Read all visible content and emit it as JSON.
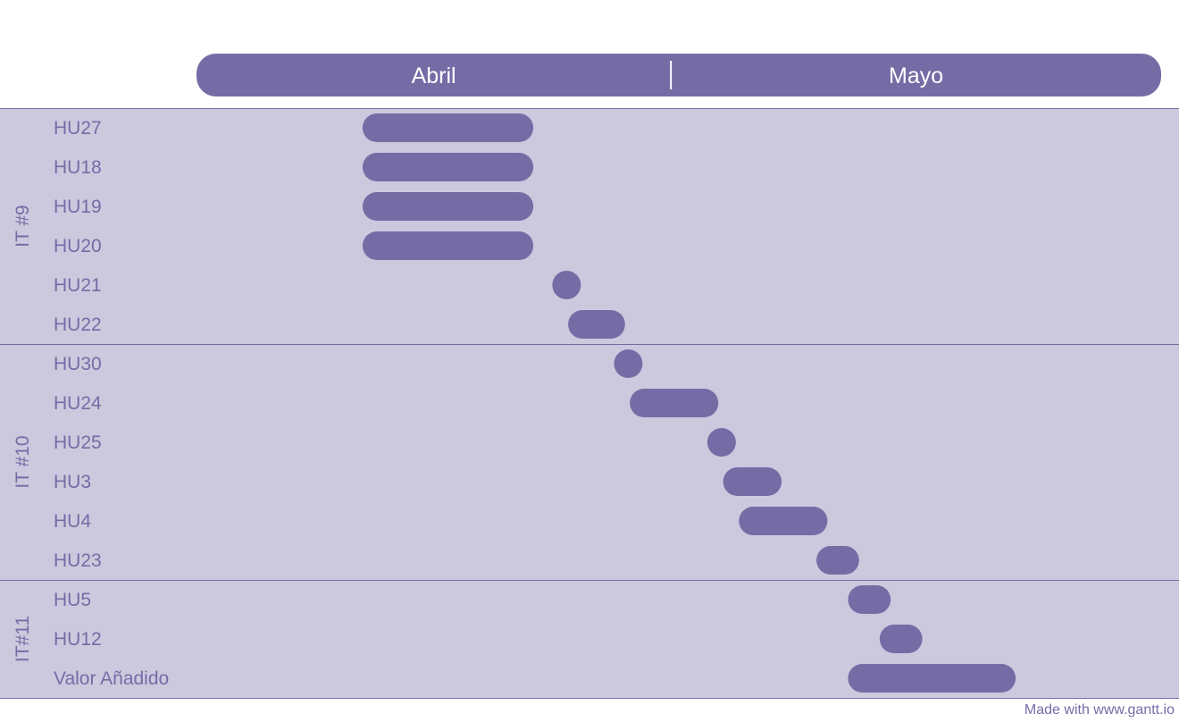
{
  "colors": {
    "accent": "#756ca6",
    "group_background": "#ccc9de",
    "page_background": "#ffffff",
    "month_text": "#ffffff"
  },
  "chart_data": {
    "type": "gantt",
    "title": "",
    "x_axis": {
      "type": "date",
      "months": [
        "Abril",
        "Mayo"
      ],
      "range_days": [
        0,
        61
      ],
      "month_boundary_day": 30
    },
    "groups": [
      {
        "label": "IT #9",
        "tasks": [
          {
            "name": "HU27",
            "start": 10.5,
            "end": 21.3
          },
          {
            "name": "HU18",
            "start": 10.5,
            "end": 21.3
          },
          {
            "name": "HU19",
            "start": 10.5,
            "end": 21.3
          },
          {
            "name": "HU20",
            "start": 10.5,
            "end": 21.3
          },
          {
            "name": "HU21",
            "start": 22.5,
            "end": 24.2
          },
          {
            "name": "HU22",
            "start": 23.5,
            "end": 27.1
          }
        ]
      },
      {
        "label": "IT #10",
        "tasks": [
          {
            "name": "HU30",
            "start": 26.4,
            "end": 28.1
          },
          {
            "name": "HU24",
            "start": 27.4,
            "end": 33.0
          },
          {
            "name": "HU25",
            "start": 32.3,
            "end": 34.0
          },
          {
            "name": "HU3",
            "start": 33.3,
            "end": 37.0
          },
          {
            "name": "HU4",
            "start": 34.3,
            "end": 39.9
          },
          {
            "name": "HU23",
            "start": 39.2,
            "end": 41.9
          }
        ]
      },
      {
        "label": "IT#11",
        "tasks": [
          {
            "name": "HU5",
            "start": 41.2,
            "end": 43.9
          },
          {
            "name": "HU12",
            "start": 43.2,
            "end": 45.9
          },
          {
            "name": "Valor Añadido",
            "start": 41.2,
            "end": 51.8
          }
        ]
      }
    ],
    "legend": "none"
  },
  "footer": {
    "credit": "Made with www.gantt.io"
  }
}
